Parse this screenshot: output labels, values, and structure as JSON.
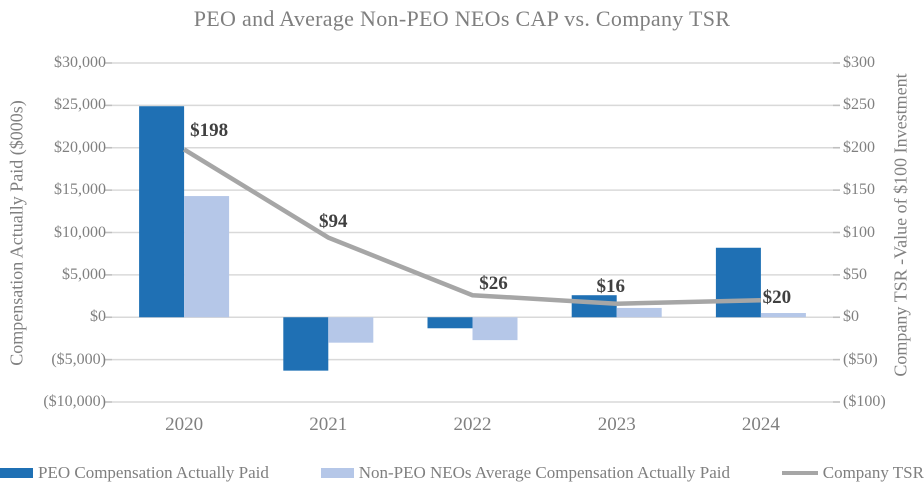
{
  "chart_data": {
    "type": "bar",
    "subtype": "combo-bar-line-dual-axis",
    "title": "PEO and Average Non-PEO NEOs CAP vs. Company TSR",
    "categories": [
      "2020",
      "2021",
      "2022",
      "2023",
      "2024"
    ],
    "series": [
      {
        "name": "PEO Compensation Actually Paid",
        "type": "bar",
        "axis": "left",
        "color": "#1F70B4",
        "values": [
          24900,
          -6300,
          -1300,
          2600,
          8200
        ]
      },
      {
        "name": "Non-PEO NEOs Average Compensation Actually Paid",
        "type": "bar",
        "axis": "left",
        "color": "#B5C7E8",
        "values": [
          14300,
          -3000,
          -2700,
          1100,
          500
        ]
      },
      {
        "name": "Company TSR",
        "type": "line",
        "axis": "right",
        "color": "#A6A6A6",
        "values": [
          198,
          94,
          26,
          16,
          20
        ],
        "point_labels": [
          "$198",
          "$94",
          "$26",
          "$16",
          "$20"
        ]
      }
    ],
    "left_axis": {
      "title": "Compensation Actually Paid ($000s)",
      "min": -10000,
      "max": 30000,
      "ticks": [
        {
          "value": 30000,
          "label": "$30,000"
        },
        {
          "value": 25000,
          "label": "$25,000"
        },
        {
          "value": 20000,
          "label": "$20,000"
        },
        {
          "value": 15000,
          "label": "$15,000"
        },
        {
          "value": 10000,
          "label": "$10,000"
        },
        {
          "value": 5000,
          "label": "$5,000"
        },
        {
          "value": 0,
          "label": "$0"
        },
        {
          "value": -5000,
          "label": "($5,000)"
        },
        {
          "value": -10000,
          "label": "($10,000)"
        }
      ]
    },
    "right_axis": {
      "title": "Company TSR -Value of $100 Investment",
      "min": -100,
      "max": 300,
      "ticks": [
        {
          "value": 300,
          "label": "$300"
        },
        {
          "value": 250,
          "label": "$250"
        },
        {
          "value": 200,
          "label": "$200"
        },
        {
          "value": 150,
          "label": "$150"
        },
        {
          "value": 100,
          "label": "$100"
        },
        {
          "value": 50,
          "label": "$50"
        },
        {
          "value": 0,
          "label": "$0"
        },
        {
          "value": -50,
          "label": "($50)"
        },
        {
          "value": -100,
          "label": "($100)"
        }
      ]
    },
    "grid": true,
    "legend_position": "bottom",
    "colors": {
      "gridline": "#D9D9D9",
      "tick_mark": "#BFBFBF",
      "axis_text": "#808080",
      "title_text": "#7F7F7F",
      "data_label_text": "#404040"
    }
  }
}
